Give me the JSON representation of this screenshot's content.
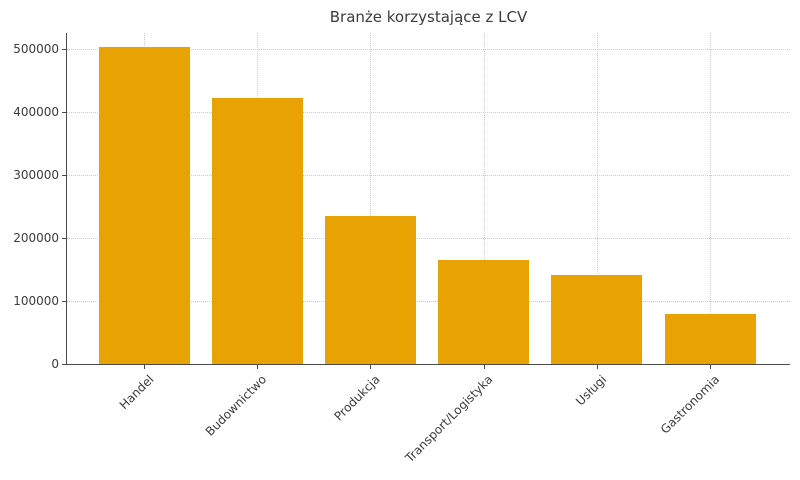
{
  "title": "Branże korzystające z LCV",
  "chart_data": {
    "type": "bar",
    "title": "Branże korzystające z LCV",
    "categories": [
      "Handel",
      "Budownictwo",
      "Produkcja",
      "Transport/Logistyka",
      "Usługi",
      "Gastronomia"
    ],
    "values": [
      503000,
      423000,
      236000,
      166000,
      141000,
      79000
    ],
    "xlabel": "",
    "ylabel": "",
    "ylim": [
      0,
      526000
    ],
    "yticks": [
      0,
      100000,
      200000,
      300000,
      400000,
      500000
    ],
    "ytick_labels": [
      "0",
      "100000",
      "200000",
      "300000",
      "400000",
      "500000"
    ],
    "grid": "dotted horizontal and vertical gridlines",
    "legend": "none",
    "bar_color": "#E8A202",
    "orientation": "vertical",
    "xtick_rotation_degrees": 45
  },
  "colors": {
    "bar": "#E8A202",
    "grid": "#cccccc",
    "axis": "#4a4a4a",
    "text": "#3c3c3c",
    "background": "#ffffff"
  }
}
